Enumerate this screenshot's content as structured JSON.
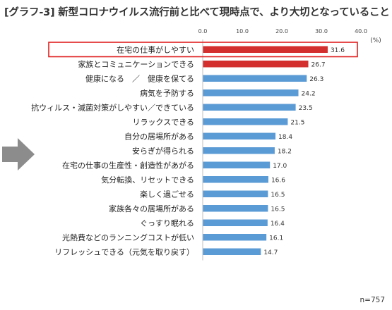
{
  "title": "[グラフ-3] 新型コロナウイルス流行前と比べて現時点で、より大切となっていること",
  "sample_note": "n=757",
  "arrow_icon": "right-arrow",
  "colors": {
    "highlight_bar": "#d32f2f",
    "default_bar": "#5b9bd5",
    "box_border": "#e02020",
    "arrow": "#8c8c8c"
  },
  "chart_data": {
    "type": "bar",
    "orientation": "horizontal",
    "title": "[グラフ-3] 新型コロナウイルス流行前と比べて現時点で、より大切となっていること",
    "xlabel": "",
    "ylabel": "",
    "unit_label": "(%)",
    "xlim": [
      0.0,
      40.0
    ],
    "xticks": [
      "0.0",
      "10.0",
      "20.0",
      "30.0",
      "40.0"
    ],
    "grid": false,
    "categories": [
      "在宅の仕事がしやすい",
      "家族とコミュニケーションできる",
      "健康になる　／　健康を保てる",
      "病気を予防する",
      "抗ウィルス・滅菌対策がしやすい／できている",
      "リラックスできる",
      "自分の居場所がある",
      "安らぎが得られる",
      "在宅の仕事の生産性・創造性があがる",
      "気分転換、リセットできる",
      "楽しく過ごせる",
      "家族各々の居場所がある",
      "ぐっすり眠れる",
      "光熱費などのランニングコストが低い",
      "リフレッシュできる（元気を取り戻す）"
    ],
    "values": [
      31.6,
      26.7,
      26.3,
      24.2,
      23.5,
      21.5,
      18.4,
      18.2,
      17.0,
      16.6,
      16.5,
      16.5,
      16.4,
      16.1,
      14.7
    ],
    "value_labels": [
      "31.6",
      "26.7",
      "26.3",
      "24.2",
      "23.5",
      "21.5",
      "18.4",
      "18.2",
      "17.0",
      "16.6",
      "16.5",
      "16.5",
      "16.4",
      "16.1",
      "14.7"
    ],
    "highlighted": [
      true,
      true,
      false,
      false,
      false,
      false,
      false,
      false,
      false,
      false,
      false,
      false,
      false,
      false,
      false
    ],
    "boxed_category": "在宅の仕事がしやすい"
  }
}
